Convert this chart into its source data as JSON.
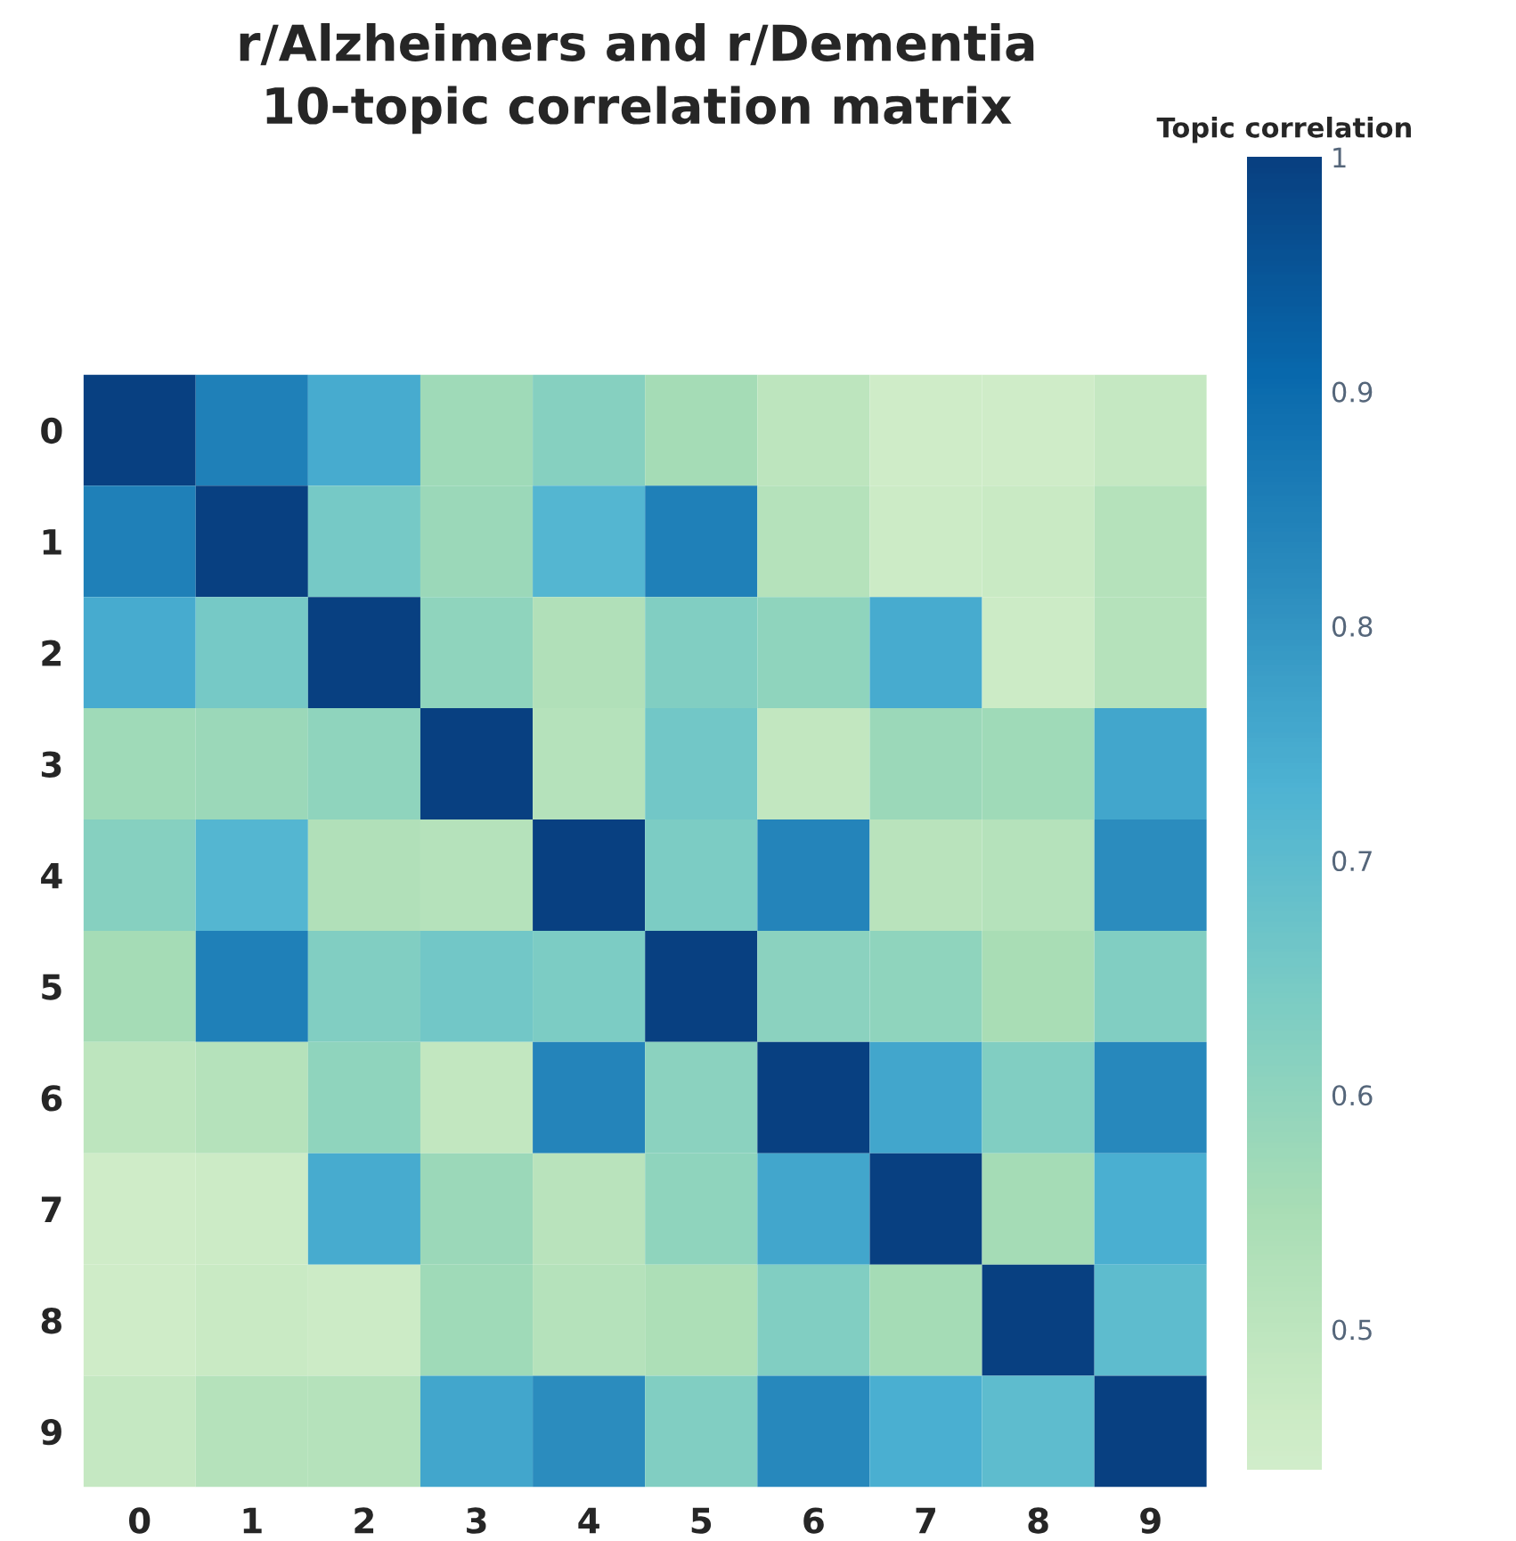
{
  "chart_data": {
    "type": "heatmap",
    "title": "r/Alzheimers and r/Dementia\n10-topic correlation matrix",
    "clabel": "Topic correlation",
    "categories": [
      "0",
      "1",
      "2",
      "3",
      "4",
      "5",
      "6",
      "7",
      "8",
      "9"
    ],
    "y_categories": [
      "0",
      "1",
      "2",
      "3",
      "4",
      "5",
      "6",
      "7",
      "8",
      "9"
    ],
    "cells": [
      [
        1,
        0.85,
        0.75,
        0.57,
        0.62,
        0.56,
        0.5,
        0.45,
        0.45,
        0.48
      ],
      [
        0.85,
        1,
        0.65,
        0.58,
        0.72,
        0.85,
        0.52,
        0.46,
        0.47,
        0.52
      ],
      [
        0.75,
        0.65,
        1,
        0.6,
        0.53,
        0.63,
        0.6,
        0.75,
        0.46,
        0.52
      ],
      [
        0.57,
        0.58,
        0.6,
        1,
        0.52,
        0.66,
        0.49,
        0.58,
        0.57,
        0.76
      ],
      [
        0.62,
        0.72,
        0.53,
        0.52,
        1,
        0.64,
        0.84,
        0.51,
        0.52,
        0.82
      ],
      [
        0.56,
        0.85,
        0.63,
        0.66,
        0.64,
        1,
        0.61,
        0.6,
        0.55,
        0.63
      ],
      [
        0.5,
        0.52,
        0.6,
        0.49,
        0.84,
        0.61,
        1,
        0.76,
        0.63,
        0.83
      ],
      [
        0.45,
        0.46,
        0.75,
        0.58,
        0.51,
        0.6,
        0.76,
        1,
        0.56,
        0.74
      ],
      [
        0.45,
        0.47,
        0.46,
        0.57,
        0.52,
        0.54,
        0.63,
        0.56,
        1,
        0.7
      ],
      [
        0.48,
        0.52,
        0.52,
        0.76,
        0.82,
        0.63,
        0.83,
        0.74,
        0.7,
        1
      ]
    ],
    "clim": [
      0.44,
      1
    ],
    "cticks": [
      0.5,
      0.6,
      0.7,
      0.8,
      0.9,
      1
    ]
  }
}
